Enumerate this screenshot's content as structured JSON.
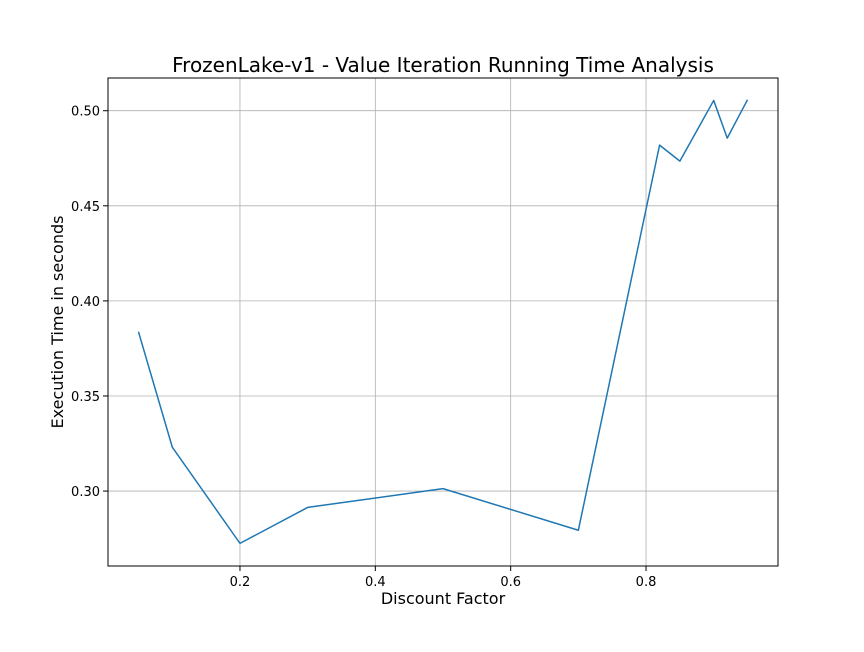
{
  "chart_data": {
    "type": "line",
    "title": "FrozenLake-v1 - Value Iteration Running Time Analysis",
    "xlabel": "Discount Factor",
    "ylabel": "Execution Time in seconds",
    "xlim": [
      0.005,
      0.995
    ],
    "ylim": [
      0.2606,
      0.5172
    ],
    "xticks": [
      0.2,
      0.4,
      0.6,
      0.8
    ],
    "xtick_labels": [
      "0.2",
      "0.4",
      "0.6",
      "0.8"
    ],
    "yticks": [
      0.3,
      0.35,
      0.4,
      0.45,
      0.5
    ],
    "ytick_labels": [
      "0.30",
      "0.35",
      "0.40",
      "0.45",
      "0.50"
    ],
    "grid": true,
    "legend": false,
    "series": [
      {
        "color": "#1f77b4",
        "x": [
          0.05,
          0.1,
          0.2,
          0.3,
          0.5,
          0.7,
          0.82,
          0.85,
          0.9,
          0.92,
          0.95
        ],
        "y": [
          0.3838,
          0.3231,
          0.2725,
          0.2914,
          0.3013,
          0.2794,
          0.4819,
          0.4735,
          0.5054,
          0.4856,
          0.5058
        ]
      }
    ]
  }
}
